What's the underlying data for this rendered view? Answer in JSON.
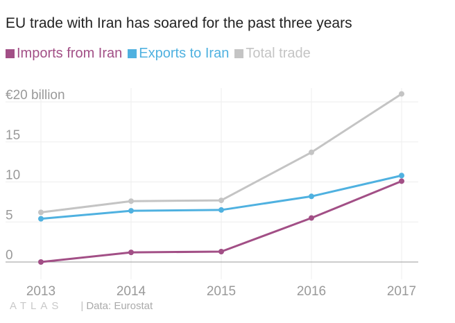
{
  "title": "EU trade with Iran has soared for the past three years",
  "footer": {
    "logo": "ATLAS",
    "separator": "|",
    "source": "Data: Eurostat"
  },
  "colors": {
    "imports": "#a24f86",
    "exports": "#4fb1e0",
    "total": "#c4c4c4",
    "grid": "#eeeeee",
    "baseline": "#999999",
    "tick_label": "#999999"
  },
  "chart_data": {
    "type": "line",
    "title": "EU trade with Iran has soared for the past three years",
    "xlabel": "",
    "ylabel": "",
    "categories": [
      "2013",
      "2014",
      "2015",
      "2016",
      "2017"
    ],
    "x_tick_labels": [
      "2013",
      "2014",
      "2015",
      "2016",
      "2017"
    ],
    "y_ticks": [
      0,
      5,
      10,
      15,
      20
    ],
    "y_tick_labels": [
      "0",
      "5",
      "10",
      "15",
      "€20 billion"
    ],
    "ylim": [
      0,
      20
    ],
    "grid": true,
    "legend_position": "top-left",
    "series": [
      {
        "name": "Imports from Iran",
        "key": "imports",
        "values": [
          0.0,
          1.2,
          1.3,
          5.5,
          10.1
        ]
      },
      {
        "name": "Exports to Iran",
        "key": "exports",
        "values": [
          5.4,
          6.4,
          6.5,
          8.2,
          10.8
        ]
      },
      {
        "name": "Total trade",
        "key": "total",
        "values": [
          6.2,
          7.6,
          7.7,
          13.7,
          21.0
        ]
      }
    ]
  }
}
